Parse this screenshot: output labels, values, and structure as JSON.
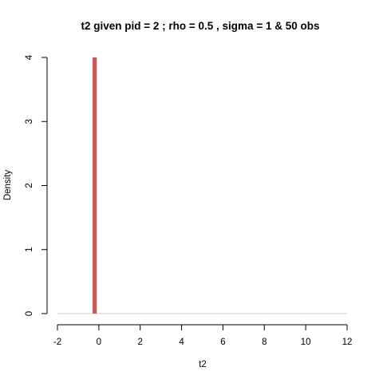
{
  "chart_data": {
    "type": "bar",
    "subtype": "histogram",
    "title": "t2 given pid =  2 ; rho = 0.5 , sigma = 1 & 50 obs",
    "xlabel": "t2",
    "ylabel": "Density",
    "xlim": [
      -2,
      12
    ],
    "ylim": [
      0,
      4
    ],
    "xticks": [
      -2,
      0,
      2,
      4,
      6,
      8,
      10,
      12
    ],
    "xtick_labels": [
      "-2",
      "0",
      "2",
      "4",
      "6",
      "8",
      "10",
      "12"
    ],
    "yticks": [
      0,
      1,
      2,
      3,
      4
    ],
    "ytick_labels": [
      "0",
      "1",
      "2",
      "3",
      "4"
    ],
    "baseline_range": [
      -2,
      12
    ],
    "bars": [
      {
        "x_start": -0.3,
        "x_end": -0.1,
        "density": 4
      }
    ],
    "grid": false,
    "colors": {
      "bar": "#cd5554",
      "baseline": "#c8c8c8",
      "axis": "#000000"
    }
  }
}
